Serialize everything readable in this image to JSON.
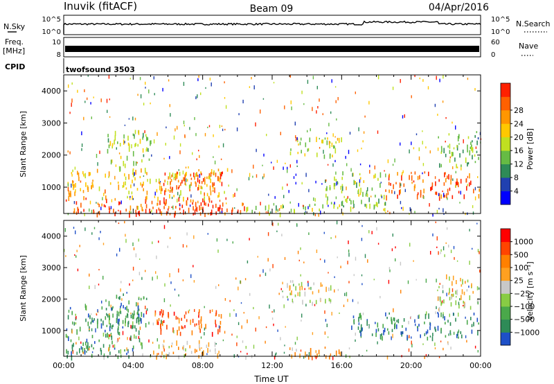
{
  "header": {
    "station": "Inuvik  (fitACF)",
    "beam": "Beam 09",
    "date": "04/Apr/2016"
  },
  "top_panels": {
    "nsky_label": "N.Sky",
    "nsky_ticks": [
      "10^5",
      "10^0"
    ],
    "nsearch_label": "N.Search",
    "freq_label": "Freq.",
    "freq_unit": "[MHz]",
    "freq_ticks": [
      "10",
      "8"
    ],
    "nave_ticks": [
      "60",
      "0"
    ],
    "nave_label": "Nave",
    "cpid_label": "CPID",
    "cpid_value": "twofsound 3503"
  },
  "chart_data": [
    {
      "type": "heatmap",
      "parameter": "power",
      "ylabel": "Slant Range [km]",
      "ylim": [
        180,
        4500
      ],
      "yticks": [
        1000,
        2000,
        3000,
        4000
      ],
      "xlim": [
        0,
        24
      ],
      "color_scale": {
        "label": "Power [dB]",
        "ticks": [
          "4",
          "8",
          "12",
          "16",
          "20",
          "24",
          "28"
        ],
        "colors": [
          "#0000ff",
          "#2040b0",
          "#2e8b57",
          "#66bb44",
          "#c0e020",
          "#ffc800",
          "#ff9600",
          "#ff6000",
          "#ff2000"
        ]
      },
      "regions": [
        {
          "t": [
            0.1,
            9.3
          ],
          "r": [
            200,
            700
          ],
          "level": 0.85
        },
        {
          "t": [
            3.2,
            9.4
          ],
          "r": [
            200,
            450
          ],
          "level": 0.95
        },
        {
          "t": [
            0.2,
            9.4
          ],
          "r": [
            700,
            1600
          ],
          "level": 0.65
        },
        {
          "t": [
            5.5,
            9.2
          ],
          "r": [
            900,
            1500
          ],
          "level": 0.9
        },
        {
          "t": [
            2.5,
            5.0
          ],
          "r": [
            1600,
            2800
          ],
          "level": 0.45
        },
        {
          "t": [
            9.6,
            10.6
          ],
          "r": [
            250,
            600
          ],
          "level": 0.8
        },
        {
          "t": [
            10.5,
            15.0
          ],
          "r": [
            200,
            500
          ],
          "level": 0.45
        },
        {
          "t": [
            13.0,
            16.0
          ],
          "r": [
            2000,
            2600
          ],
          "level": 0.5
        },
        {
          "t": [
            15.0,
            18.5
          ],
          "r": [
            300,
            1500
          ],
          "level": 0.45
        },
        {
          "t": [
            18.5,
            23.9
          ],
          "r": [
            700,
            1500
          ],
          "level": 0.85
        },
        {
          "t": [
            21.5,
            23.9
          ],
          "r": [
            1700,
            2800
          ],
          "level": 0.35
        }
      ]
    },
    {
      "type": "heatmap",
      "parameter": "velocity",
      "ylabel": "Slant Range [km]",
      "ylim": [
        180,
        4500
      ],
      "yticks": [
        1000,
        2000,
        3000,
        4000
      ],
      "xlim": [
        0,
        24
      ],
      "xlabel": "Time UT",
      "xticks": [
        "00:00",
        "04:00",
        "08:00",
        "12:00",
        "16:00",
        "20:00",
        "00:00"
      ],
      "color_scale": {
        "label": "Velocity [m s⁻¹]",
        "ticks": [
          "1000",
          "500",
          "100",
          "25",
          "−25",
          "−100",
          "−500",
          "−1000"
        ],
        "colors": [
          "#1e50c8",
          "#2e8b57",
          "#4aa84a",
          "#88cc44",
          "#c8c8c8",
          "#ffa020",
          "#ff8000",
          "#ff4400",
          "#ff0000"
        ]
      },
      "regions": [
        {
          "t": [
            0.1,
            4.5
          ],
          "r": [
            200,
            1800
          ],
          "level": 0.22
        },
        {
          "t": [
            2.5,
            4.8
          ],
          "r": [
            1200,
            2300
          ],
          "level": 0.2
        },
        {
          "t": [
            5.0,
            9.2
          ],
          "r": [
            900,
            1700
          ],
          "level": 0.78
        },
        {
          "t": [
            4.5,
            9.2
          ],
          "r": [
            200,
            700
          ],
          "level": 0.55
        },
        {
          "t": [
            12.8,
            15.5
          ],
          "r": [
            1900,
            2600
          ],
          "level": 0.5
        },
        {
          "t": [
            13.0,
            16.5
          ],
          "r": [
            200,
            500
          ],
          "level": 0.62
        },
        {
          "t": [
            16.5,
            23.9
          ],
          "r": [
            800,
            1600
          ],
          "level": 0.15
        },
        {
          "t": [
            21.5,
            23.9
          ],
          "r": [
            1700,
            2800
          ],
          "level": 0.48
        }
      ]
    }
  ]
}
